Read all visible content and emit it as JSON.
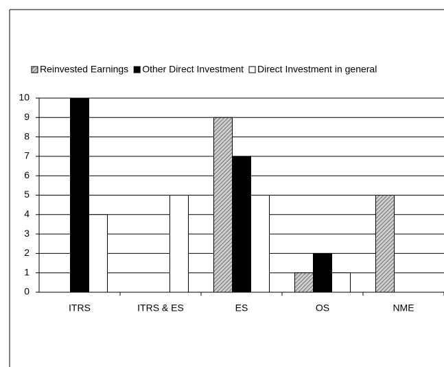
{
  "chart_data": {
    "type": "bar",
    "categories": [
      "ITRS",
      "ITRS & ES",
      "ES",
      "OS",
      "NME"
    ],
    "series": [
      {
        "name": "Reinvested Earnings",
        "color": "#9a9a9a",
        "values": [
          0,
          0,
          9,
          1,
          5
        ]
      },
      {
        "name": "Other Direct Investment",
        "color": "#000000",
        "values": [
          10,
          0,
          7,
          2,
          0
        ]
      },
      {
        "name": "Direct Investment in general",
        "color": "#ffffff",
        "values": [
          4,
          5,
          5,
          1,
          0
        ]
      }
    ],
    "ylim": [
      0,
      10
    ],
    "yticks": [
      0,
      1,
      2,
      3,
      4,
      5,
      6,
      7,
      8,
      9,
      10
    ],
    "grid": true,
    "legend": "top"
  }
}
